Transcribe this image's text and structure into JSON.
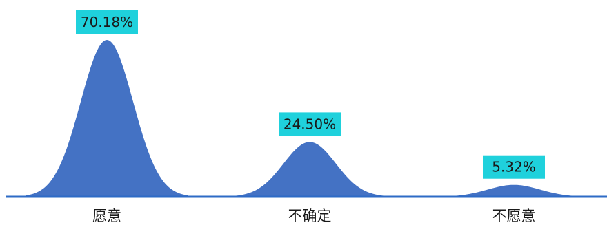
{
  "chart_data": {
    "type": "area",
    "title": "",
    "xlabel": "",
    "ylabel": "",
    "categories": [
      "愿意",
      "不确定",
      "不愿意"
    ],
    "values": [
      70.18,
      24.5,
      5.32
    ],
    "data_labels": [
      "70.18%",
      "24.50%",
      "5.32%"
    ],
    "unit": "%",
    "ylim": [
      0,
      70.18
    ],
    "grid": false,
    "legend": "none",
    "colors": {
      "fill": "#4472c4",
      "baseline": "#2e6bc6",
      "label_box": "#1fd1dc",
      "text": "#1a1a1a"
    }
  }
}
